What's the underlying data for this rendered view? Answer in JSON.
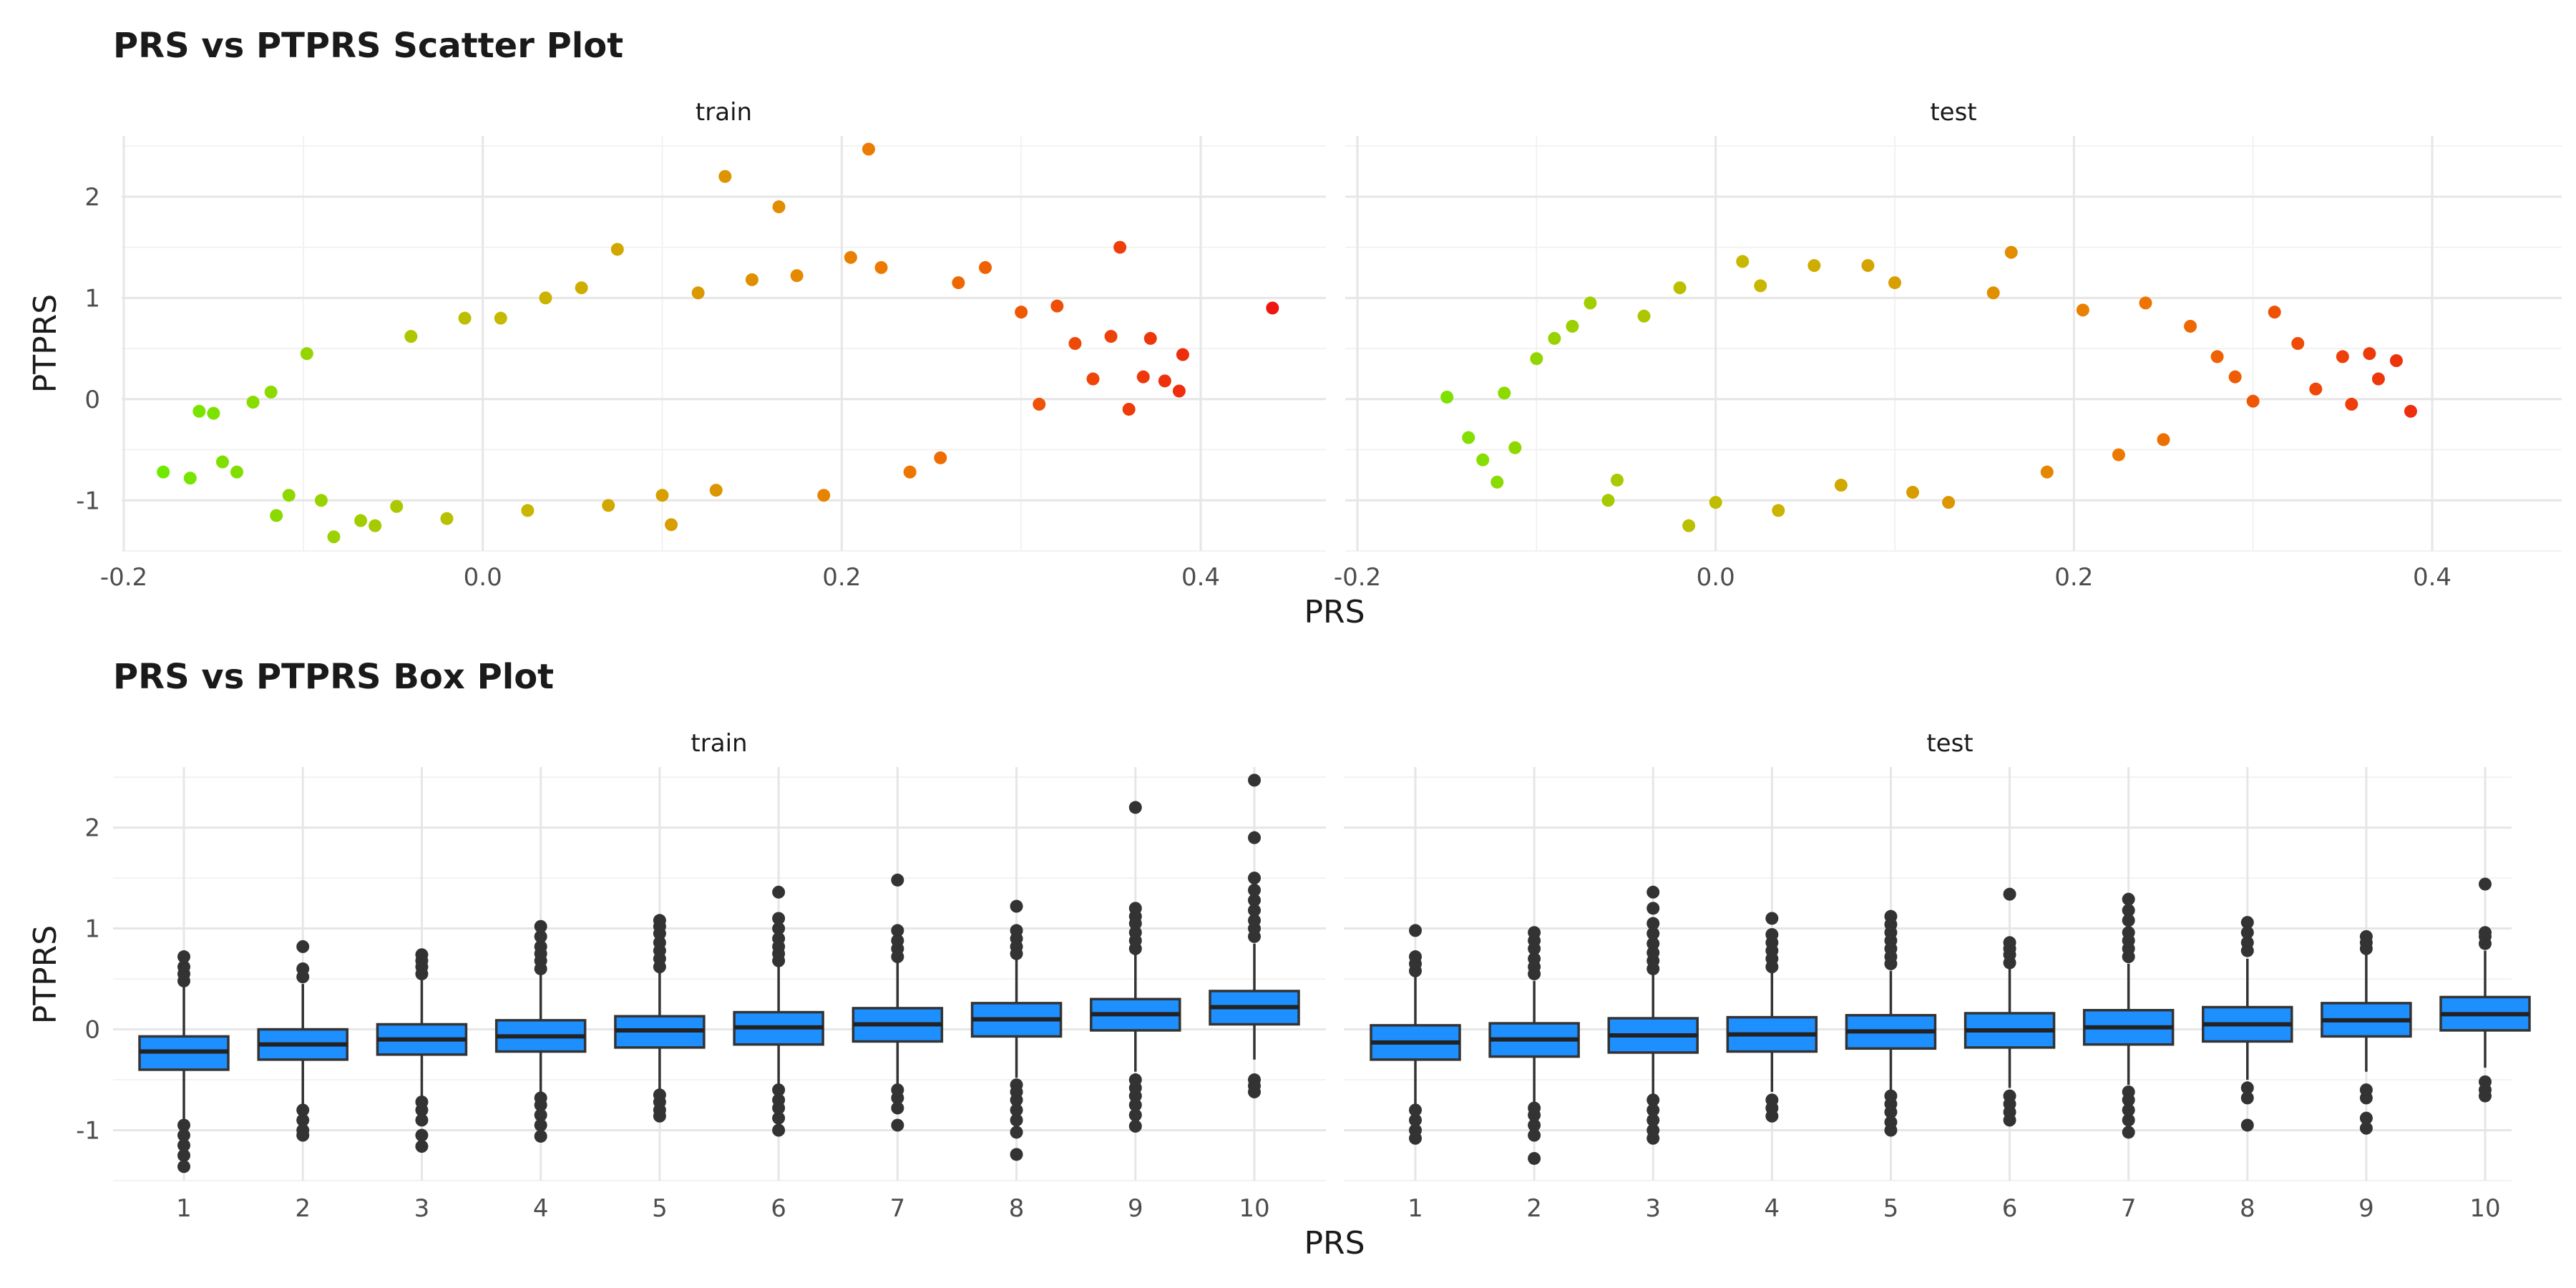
{
  "chart_data": [
    {
      "type": "scatter",
      "title": "PRS vs PTPRS Scatter Plot",
      "xlabel": "PRS",
      "ylabel": "PTPRS",
      "xlim": [
        -0.2,
        0.45
      ],
      "ylim": [
        -1.5,
        2.6
      ],
      "x_ticks": [
        -0.2,
        0.0,
        0.2,
        0.4
      ],
      "x_tick_labels": [
        "-0.2",
        "0.0",
        "0.2",
        "0.4"
      ],
      "y_ticks": [
        -1,
        0,
        1,
        2
      ],
      "y_tick_labels": [
        "-1",
        "0",
        "1",
        "2"
      ],
      "grid": true,
      "legend": "none",
      "color_scale": [
        "#66ee00",
        "#c8b800",
        "#ee7700",
        "#ee1111"
      ],
      "panels": [
        {
          "name": "train",
          "points": [
            [
              -0.178,
              -0.72
            ],
            [
              -0.163,
              -0.78
            ],
            [
              -0.158,
              -0.12
            ],
            [
              -0.15,
              -0.14
            ],
            [
              -0.145,
              -0.62
            ],
            [
              -0.137,
              -0.72
            ],
            [
              -0.128,
              -0.03
            ],
            [
              -0.118,
              0.07
            ],
            [
              -0.115,
              -1.15
            ],
            [
              -0.108,
              -0.95
            ],
            [
              -0.098,
              0.45
            ],
            [
              -0.09,
              -1.0
            ],
            [
              -0.083,
              -1.36
            ],
            [
              -0.068,
              -1.2
            ],
            [
              -0.06,
              -1.25
            ],
            [
              -0.048,
              -1.06
            ],
            [
              -0.04,
              0.62
            ],
            [
              -0.02,
              -1.18
            ],
            [
              -0.01,
              0.8
            ],
            [
              0.01,
              0.8
            ],
            [
              0.025,
              -1.1
            ],
            [
              0.035,
              1.0
            ],
            [
              0.055,
              1.1
            ],
            [
              0.075,
              1.48
            ],
            [
              0.07,
              -1.05
            ],
            [
              0.1,
              -0.95
            ],
            [
              0.105,
              -1.24
            ],
            [
              0.12,
              1.05
            ],
            [
              0.13,
              -0.9
            ],
            [
              0.135,
              2.2
            ],
            [
              0.15,
              1.18
            ],
            [
              0.165,
              1.9
            ],
            [
              0.175,
              1.22
            ],
            [
              0.19,
              -0.95
            ],
            [
              0.205,
              1.4
            ],
            [
              0.215,
              2.47
            ],
            [
              0.222,
              1.3
            ],
            [
              0.238,
              -0.72
            ],
            [
              0.255,
              -0.58
            ],
            [
              0.265,
              1.15
            ],
            [
              0.28,
              1.3
            ],
            [
              0.3,
              0.86
            ],
            [
              0.31,
              -0.05
            ],
            [
              0.32,
              0.92
            ],
            [
              0.33,
              0.55
            ],
            [
              0.34,
              0.2
            ],
            [
              0.35,
              0.62
            ],
            [
              0.355,
              1.5
            ],
            [
              0.36,
              -0.1
            ],
            [
              0.368,
              0.22
            ],
            [
              0.372,
              0.6
            ],
            [
              0.38,
              0.18
            ],
            [
              0.388,
              0.08
            ],
            [
              0.39,
              0.44
            ],
            [
              0.44,
              0.9
            ]
          ]
        },
        {
          "name": "test",
          "points": [
            [
              -0.15,
              0.02
            ],
            [
              -0.138,
              -0.38
            ],
            [
              -0.13,
              -0.6
            ],
            [
              -0.122,
              -0.82
            ],
            [
              -0.118,
              0.06
            ],
            [
              -0.112,
              -0.48
            ],
            [
              -0.1,
              0.4
            ],
            [
              -0.09,
              0.6
            ],
            [
              -0.08,
              0.72
            ],
            [
              -0.07,
              0.95
            ],
            [
              -0.06,
              -1.0
            ],
            [
              -0.055,
              -0.8
            ],
            [
              -0.04,
              0.82
            ],
            [
              -0.02,
              1.1
            ],
            [
              -0.015,
              -1.25
            ],
            [
              0.0,
              -1.02
            ],
            [
              0.015,
              1.36
            ],
            [
              0.025,
              1.12
            ],
            [
              0.035,
              -1.1
            ],
            [
              0.055,
              1.32
            ],
            [
              0.07,
              -0.85
            ],
            [
              0.085,
              1.32
            ],
            [
              0.1,
              1.15
            ],
            [
              0.11,
              -0.92
            ],
            [
              0.13,
              -1.02
            ],
            [
              0.155,
              1.05
            ],
            [
              0.165,
              1.45
            ],
            [
              0.185,
              -0.72
            ],
            [
              0.205,
              0.88
            ],
            [
              0.225,
              -0.55
            ],
            [
              0.24,
              0.95
            ],
            [
              0.25,
              -0.4
            ],
            [
              0.265,
              0.72
            ],
            [
              0.28,
              0.42
            ],
            [
              0.29,
              0.22
            ],
            [
              0.3,
              -0.02
            ],
            [
              0.312,
              0.86
            ],
            [
              0.325,
              0.55
            ],
            [
              0.335,
              0.1
            ],
            [
              0.35,
              0.42
            ],
            [
              0.355,
              -0.05
            ],
            [
              0.365,
              0.45
            ],
            [
              0.37,
              0.2
            ],
            [
              0.38,
              0.38
            ],
            [
              0.388,
              -0.12
            ]
          ]
        }
      ]
    },
    {
      "type": "box",
      "title": "PRS vs PTPRS Box Plot",
      "xlabel": "PRS",
      "ylabel": "PTPRS",
      "categories": [
        "1",
        "2",
        "3",
        "4",
        "5",
        "6",
        "7",
        "8",
        "9",
        "10"
      ],
      "ylim": [
        -1.5,
        2.6
      ],
      "y_ticks": [
        -1,
        0,
        1,
        2
      ],
      "y_tick_labels": [
        "-1",
        "0",
        "1",
        "2"
      ],
      "grid": true,
      "legend": "none",
      "box_color": "#1e8fff",
      "panels": [
        {
          "name": "train",
          "boxes": [
            {
              "whisker_low": -0.9,
              "q1": -0.4,
              "median": -0.22,
              "q3": -0.07,
              "whisker_high": 0.42,
              "outliers": [
                -0.95,
                -1.05,
                -1.15,
                -1.25,
                -1.36,
                0.48,
                0.55,
                0.62,
                0.72
              ]
            },
            {
              "whisker_low": -0.75,
              "q1": -0.3,
              "median": -0.15,
              "q3": 0.0,
              "whisker_high": 0.45,
              "outliers": [
                -0.8,
                -0.9,
                -1.0,
                -1.05,
                0.52,
                0.6,
                0.82
              ]
            },
            {
              "whisker_low": -0.68,
              "q1": -0.25,
              "median": -0.1,
              "q3": 0.05,
              "whisker_high": 0.5,
              "outliers": [
                -0.72,
                -0.8,
                -0.9,
                -1.05,
                -1.16,
                0.55,
                0.62,
                0.68,
                0.74
              ]
            },
            {
              "whisker_low": -0.62,
              "q1": -0.22,
              "median": -0.07,
              "q3": 0.09,
              "whisker_high": 0.55,
              "outliers": [
                -0.68,
                -0.75,
                -0.85,
                -0.95,
                -1.06,
                0.6,
                0.68,
                0.75,
                0.82,
                0.92,
                1.02
              ]
            },
            {
              "whisker_low": -0.6,
              "q1": -0.18,
              "median": -0.01,
              "q3": 0.13,
              "whisker_high": 0.58,
              "outliers": [
                -0.65,
                -0.72,
                -0.8,
                -0.86,
                0.62,
                0.7,
                0.78,
                0.86,
                0.95,
                1.02,
                1.08
              ]
            },
            {
              "whisker_low": -0.55,
              "q1": -0.15,
              "median": 0.02,
              "q3": 0.17,
              "whisker_high": 0.62,
              "outliers": [
                -0.6,
                -0.7,
                -0.78,
                -0.88,
                -1.0,
                0.68,
                0.75,
                0.82,
                0.9,
                1.0,
                1.1,
                1.36
              ]
            },
            {
              "whisker_low": -0.55,
              "q1": -0.12,
              "median": 0.05,
              "q3": 0.21,
              "whisker_high": 0.68,
              "outliers": [
                -0.6,
                -0.68,
                -0.78,
                -0.95,
                0.72,
                0.8,
                0.88,
                0.98,
                1.48
              ]
            },
            {
              "whisker_low": -0.48,
              "q1": -0.07,
              "median": 0.1,
              "q3": 0.26,
              "whisker_high": 0.7,
              "outliers": [
                -0.55,
                -0.62,
                -0.7,
                -0.8,
                -0.9,
                -1.02,
                -1.24,
                0.75,
                0.82,
                0.9,
                0.98,
                1.22
              ]
            },
            {
              "whisker_low": -0.42,
              "q1": -0.01,
              "median": 0.15,
              "q3": 0.3,
              "whisker_high": 0.75,
              "outliers": [
                -0.5,
                -0.58,
                -0.66,
                -0.75,
                -0.85,
                -0.96,
                0.8,
                0.88,
                0.96,
                1.05,
                1.12,
                1.2,
                2.2
              ]
            },
            {
              "whisker_low": -0.3,
              "q1": 0.05,
              "median": 0.22,
              "q3": 0.38,
              "whisker_high": 0.85,
              "outliers": [
                -0.5,
                -0.56,
                -0.62,
                0.92,
                1.0,
                1.08,
                1.18,
                1.28,
                1.38,
                1.5,
                1.9,
                2.47
              ]
            }
          ]
        },
        {
          "name": "test",
          "boxes": [
            {
              "whisker_low": -0.75,
              "q1": -0.3,
              "median": -0.13,
              "q3": 0.04,
              "whisker_high": 0.52,
              "outliers": [
                -0.8,
                -0.9,
                -1.0,
                -1.08,
                0.58,
                0.65,
                0.72,
                0.98
              ]
            },
            {
              "whisker_low": -0.72,
              "q1": -0.27,
              "median": -0.1,
              "q3": 0.06,
              "whisker_high": 0.48,
              "outliers": [
                -0.78,
                -0.85,
                -0.95,
                -1.05,
                -1.28,
                0.55,
                0.62,
                0.7,
                0.8,
                0.88,
                0.96
              ]
            },
            {
              "whisker_low": -0.65,
              "q1": -0.23,
              "median": -0.06,
              "q3": 0.11,
              "whisker_high": 0.55,
              "outliers": [
                -0.7,
                -0.8,
                -0.9,
                -1.0,
                -1.08,
                0.6,
                0.68,
                0.76,
                0.85,
                0.95,
                1.05,
                1.2,
                1.36
              ]
            },
            {
              "whisker_low": -0.62,
              "q1": -0.22,
              "median": -0.05,
              "q3": 0.12,
              "whisker_high": 0.56,
              "outliers": [
                -0.7,
                -0.78,
                -0.86,
                0.62,
                0.7,
                0.78,
                0.86,
                0.94,
                1.1
              ]
            },
            {
              "whisker_low": -0.6,
              "q1": -0.19,
              "median": -0.02,
              "q3": 0.14,
              "whisker_high": 0.58,
              "outliers": [
                -0.66,
                -0.74,
                -0.82,
                -0.92,
                -1.0,
                0.65,
                0.72,
                0.8,
                0.88,
                0.96,
                1.04,
                1.12
              ]
            },
            {
              "whisker_low": -0.58,
              "q1": -0.18,
              "median": -0.01,
              "q3": 0.16,
              "whisker_high": 0.6,
              "outliers": [
                -0.66,
                -0.74,
                -0.82,
                -0.9,
                0.66,
                0.74,
                0.8,
                0.86,
                1.34
              ]
            },
            {
              "whisker_low": -0.55,
              "q1": -0.15,
              "median": 0.02,
              "q3": 0.19,
              "whisker_high": 0.65,
              "outliers": [
                -0.62,
                -0.7,
                -0.8,
                -0.9,
                -1.02,
                0.72,
                0.8,
                0.88,
                0.96,
                1.08,
                1.18,
                1.29
              ]
            },
            {
              "whisker_low": -0.5,
              "q1": -0.12,
              "median": 0.05,
              "q3": 0.22,
              "whisker_high": 0.7,
              "outliers": [
                -0.58,
                -0.68,
                -0.95,
                0.78,
                0.86,
                0.96,
                1.06
              ]
            },
            {
              "whisker_low": -0.42,
              "q1": -0.07,
              "median": 0.09,
              "q3": 0.26,
              "whisker_high": 0.74,
              "outliers": [
                -0.6,
                -0.68,
                -0.88,
                -0.98,
                0.8,
                0.86,
                0.92
              ]
            },
            {
              "whisker_low": -0.38,
              "q1": -0.01,
              "median": 0.15,
              "q3": 0.32,
              "whisker_high": 0.78,
              "outliers": [
                -0.52,
                -0.6,
                -0.66,
                0.85,
                0.92,
                0.96,
                1.44
              ]
            }
          ]
        }
      ]
    }
  ]
}
